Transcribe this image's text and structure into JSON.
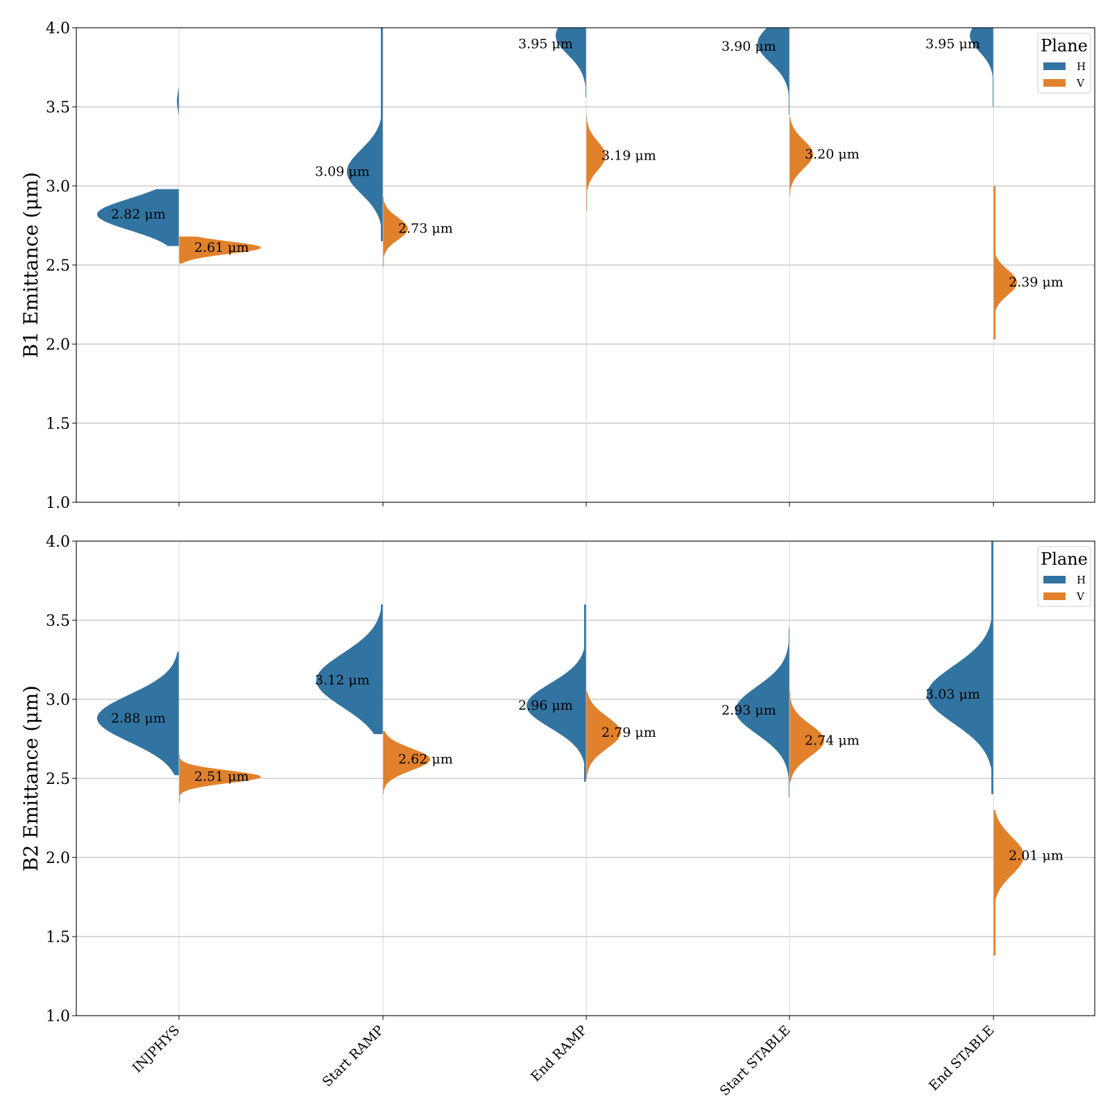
{
  "chart_data": {
    "type": "violin",
    "categories": [
      "INJPHYS",
      "Start RAMP",
      "End RAMP",
      "Start STABLE",
      "End STABLE"
    ],
    "legend": {
      "title": "Plane",
      "placement": "top-right"
    },
    "colors": {
      "H": "#3274a1",
      "V": "#e1812c"
    },
    "unit": "μm",
    "ylim": [
      1.0,
      4.0
    ],
    "yticks": [
      1.0,
      1.5,
      2.0,
      2.5,
      3.0,
      3.5,
      4.0
    ],
    "grid": "horizontal",
    "panels": [
      {
        "ylabel": "B1 Emittance (μm)",
        "series": [
          {
            "name": "H",
            "medians": [
              2.82,
              3.09,
              3.95,
              3.9,
              3.95
            ],
            "labels": [
              "2.82 μm",
              "3.09 μm",
              "3.95 μm",
              "3.90 μm",
              "3.95 μm"
            ]
          },
          {
            "name": "V",
            "medians": [
              2.61,
              2.73,
              3.19,
              3.2,
              2.39
            ],
            "labels": [
              "2.61 μm",
              "2.73 μm",
              "3.19 μm",
              "3.20 μm",
              "2.39 μm"
            ]
          }
        ]
      },
      {
        "ylabel": "B2 Emittance (μm)",
        "series": [
          {
            "name": "H",
            "medians": [
              2.88,
              3.12,
              2.96,
              2.93,
              3.03
            ],
            "labels": [
              "2.88 μm",
              "3.12 μm",
              "2.96 μm",
              "2.93 μm",
              "3.03 μm"
            ]
          },
          {
            "name": "V",
            "medians": [
              2.51,
              2.62,
              2.79,
              2.74,
              2.01
            ],
            "labels": [
              "2.51 μm",
              "2.62 μm",
              "2.79 μm",
              "2.74 μm",
              "2.01 μm"
            ]
          }
        ]
      }
    ]
  }
}
